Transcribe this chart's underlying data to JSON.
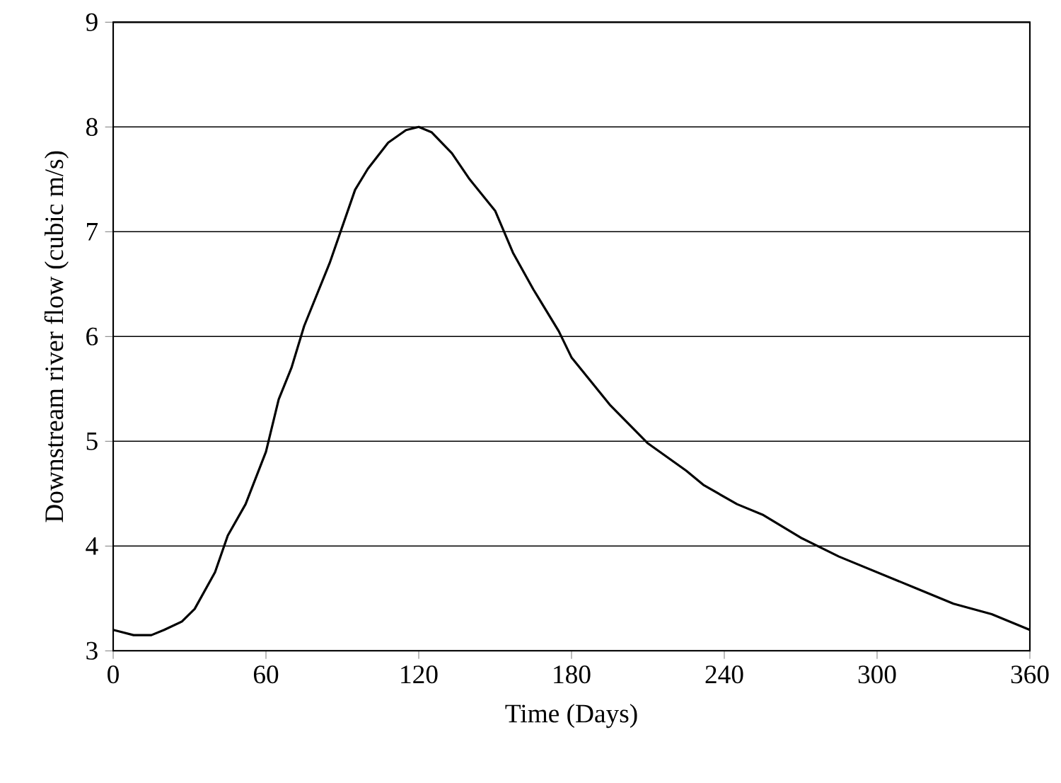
{
  "chart_data": {
    "type": "line",
    "xlabel": "Time (Days)",
    "ylabel": "Downstream river flow (cubic m/s)",
    "x": [
      0,
      8,
      15,
      20,
      27,
      32,
      40,
      45,
      52,
      60,
      65,
      70,
      75,
      85,
      95,
      100,
      108,
      115,
      120,
      125,
      133,
      140,
      150,
      157,
      165,
      175,
      180,
      195,
      210,
      225,
      232,
      245,
      255,
      270,
      285,
      300,
      315,
      330,
      345,
      360
    ],
    "series": [
      {
        "color": "#000000",
        "values": [
          3.2,
          3.15,
          3.15,
          3.2,
          3.28,
          3.4,
          3.75,
          4.1,
          4.4,
          4.9,
          5.4,
          5.7,
          6.1,
          6.7,
          7.4,
          7.6,
          7.85,
          7.97,
          8.0,
          7.95,
          7.75,
          7.5,
          7.2,
          6.8,
          6.45,
          6.05,
          5.8,
          5.35,
          4.98,
          4.72,
          4.58,
          4.4,
          4.3,
          4.08,
          3.9,
          3.75,
          3.6,
          3.45,
          3.35,
          3.2
        ]
      }
    ],
    "xlim": [
      0,
      360
    ],
    "ylim": [
      3,
      9
    ],
    "xticks": [
      0,
      60,
      120,
      180,
      240,
      300,
      360
    ],
    "yticks": [
      3,
      4,
      5,
      6,
      7,
      8,
      9
    ],
    "grid": "y",
    "marker": "none",
    "line_style": "solid"
  }
}
